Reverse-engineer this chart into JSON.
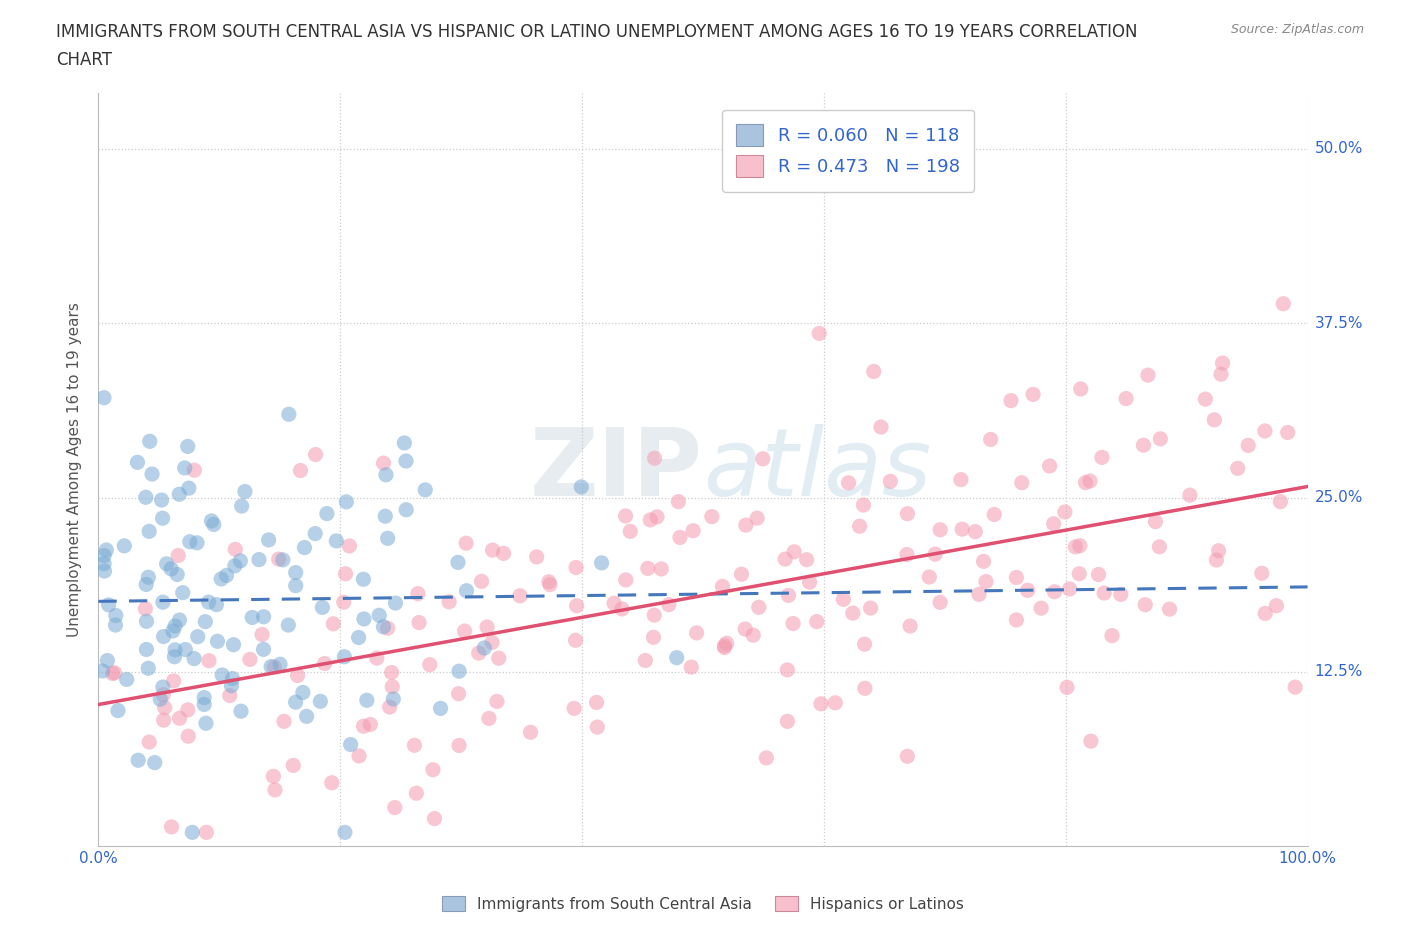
{
  "title_line1": "IMMIGRANTS FROM SOUTH CENTRAL ASIA VS HISPANIC OR LATINO UNEMPLOYMENT AMONG AGES 16 TO 19 YEARS CORRELATION",
  "title_line2": "CHART",
  "source_text": "Source: ZipAtlas.com",
  "ylabel": "Unemployment Among Ages 16 to 19 years",
  "xlim": [
    0.0,
    1.0
  ],
  "ylim": [
    0.0,
    0.54
  ],
  "ytick_vals": [
    0.125,
    0.25,
    0.375,
    0.5
  ],
  "ytick_labels": [
    "12.5%",
    "25.0%",
    "37.5%",
    "50.0%"
  ],
  "xtick_vals": [
    0.0,
    0.2,
    0.4,
    0.6,
    0.8,
    1.0
  ],
  "xtick_labels": [
    "0.0%",
    "",
    "",
    "",
    "",
    "100.0%"
  ],
  "grid_color": "#cccccc",
  "blue_dot_color": "#7aaad4",
  "pink_dot_color": "#f49ab0",
  "blue_line_color": "#4477bb",
  "pink_line_color": "#e05070",
  "blue_fill": "#aac4e0",
  "pink_fill": "#f8c0cc",
  "R_blue": 0.06,
  "N_blue": 118,
  "R_pink": 0.473,
  "N_pink": 198,
  "legend_label_blue": "Immigrants from South Central Asia",
  "legend_label_pink": "Hispanics or Latinos",
  "watermark_ZIP": "ZIP",
  "watermark_atlas": "atlas",
  "title_fontsize": 12,
  "label_fontsize": 11,
  "tick_fontsize": 11,
  "dot_alpha": 0.55,
  "dot_size": 120
}
